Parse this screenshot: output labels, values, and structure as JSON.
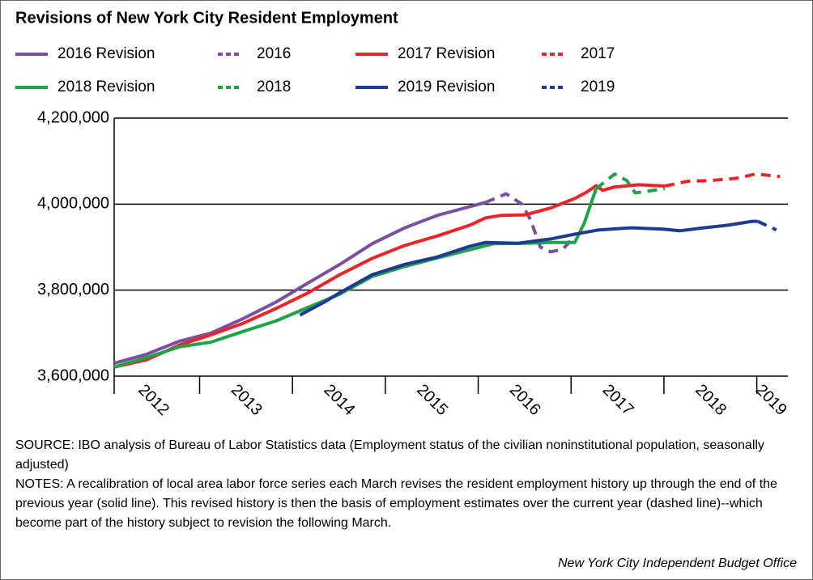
{
  "chart_data": {
    "type": "line",
    "title": "Revisions of New York City Resident Employment",
    "xlim": [
      2012.08,
      2019.3
    ],
    "ylim": [
      3600000,
      4200000
    ],
    "yticks": [
      {
        "value": 3600000,
        "label": "3,600,000"
      },
      {
        "value": 3800000,
        "label": "3,800,000"
      },
      {
        "value": 4000000,
        "label": "4,000,000"
      },
      {
        "value": 4200000,
        "label": "4,200,000"
      }
    ],
    "xticks": [
      {
        "value": 2012.5,
        "label": "2012"
      },
      {
        "value": 2013.5,
        "label": "2013"
      },
      {
        "value": 2014.5,
        "label": "2014"
      },
      {
        "value": 2015.5,
        "label": "2015"
      },
      {
        "value": 2016.5,
        "label": "2016"
      },
      {
        "value": 2017.5,
        "label": "2017"
      },
      {
        "value": 2018.5,
        "label": "2018"
      },
      {
        "value": 2019.15,
        "label": "2019"
      }
    ],
    "grid": true,
    "series": [
      {
        "name": "2016 Revision",
        "color": "#7a4f9f",
        "dashed": false,
        "x": [
          2012.08,
          2012.43,
          2012.78,
          2013.12,
          2013.47,
          2013.82,
          2014.17,
          2014.51,
          2014.86,
          2015.21,
          2015.56,
          2015.91,
          2016.08
        ],
        "values": [
          3630000,
          3651000,
          3681000,
          3700000,
          3734000,
          3772000,
          3817000,
          3860000,
          3908000,
          3945000,
          3974000,
          3994000,
          4004000
        ]
      },
      {
        "name": "2016",
        "color": "#7a4f9f",
        "dashed": true,
        "x": [
          2016.08,
          2016.3,
          2016.47,
          2016.56,
          2016.67,
          2016.78,
          2016.91,
          2017.04
        ],
        "values": [
          4004000,
          4024000,
          4000000,
          3965000,
          3900000,
          3889000,
          3895000,
          3925000
        ]
      },
      {
        "name": "2017 Revision",
        "color": "#e8262a",
        "dashed": false,
        "x": [
          2012.08,
          2012.43,
          2012.78,
          2013.12,
          2013.47,
          2013.82,
          2014.17,
          2014.51,
          2014.86,
          2015.21,
          2015.56,
          2015.91,
          2016.08,
          2016.25,
          2016.51,
          2016.78,
          2017.04,
          2017.17,
          2017.27,
          2017.34,
          2017.47,
          2017.73,
          2018.01
        ],
        "values": [
          3621000,
          3638000,
          3672000,
          3696000,
          3723000,
          3757000,
          3794000,
          3836000,
          3874000,
          3904000,
          3926000,
          3951000,
          3968000,
          3974000,
          3975000,
          3991000,
          4013000,
          4028000,
          4043000,
          4032000,
          4040000,
          4045000,
          4042000
        ]
      },
      {
        "name": "2017",
        "color": "#e8262a",
        "dashed": true,
        "x": [
          2018.01,
          2018.25,
          2018.51,
          2018.78,
          2018.99,
          2019.25
        ],
        "values": [
          4042000,
          4053000,
          4055000,
          4060000,
          4070000,
          4064000
        ]
      },
      {
        "name": "2018 Revision",
        "color": "#1fa24a",
        "dashed": false,
        "x": [
          2012.08,
          2012.43,
          2012.78,
          2013.12,
          2013.47,
          2013.82,
          2014.17,
          2014.51,
          2014.86,
          2015.21,
          2015.56,
          2015.91,
          2016.17,
          2016.51,
          2016.78,
          2017.04,
          2017.14,
          2017.27
        ],
        "values": [
          3621000,
          3643000,
          3668000,
          3679000,
          3704000,
          3728000,
          3760000,
          3791000,
          3832000,
          3855000,
          3875000,
          3894000,
          3908000,
          3909000,
          3911000,
          3911000,
          3955000,
          4036000
        ]
      },
      {
        "name": "2018",
        "color": "#1fa24a",
        "dashed": true,
        "x": [
          2017.27,
          2017.47,
          2017.6,
          2017.69,
          2017.82,
          2018.01
        ],
        "values": [
          4036000,
          4070000,
          4055000,
          4026000,
          4030000,
          4036000
        ]
      },
      {
        "name": "2019 Revision",
        "color": "#1f3a93",
        "dashed": false,
        "x": [
          2014.08,
          2014.34,
          2014.51,
          2014.86,
          2015.21,
          2015.56,
          2015.91,
          2016.08,
          2016.43,
          2016.78,
          2017.04,
          2017.3,
          2017.65,
          2017.99,
          2018.17,
          2018.43,
          2018.69,
          2018.95,
          2019.01
        ],
        "values": [
          3742000,
          3772000,
          3794000,
          3836000,
          3860000,
          3877000,
          3902000,
          3911000,
          3909000,
          3919000,
          3930000,
          3940000,
          3945000,
          3942000,
          3938000,
          3945000,
          3951000,
          3960000,
          3960000
        ]
      },
      {
        "name": "2019",
        "color": "#1f3a93",
        "dashed": true,
        "x": [
          2019.01,
          2019.21
        ],
        "values": [
          3960000,
          3940000
        ]
      }
    ],
    "source": "SOURCE: IBO analysis of Bureau of Labor Statistics data (Employment status of the civilian noninstitutional population, seasonally adjusted)",
    "notes": "NOTES: A recalibration of local area labor force series each March revises the resident employment history up through the end of the previous year (solid line). This revised history is then the basis of employment estimates over the current year (dashed line)--which become part of the history subject to revision the following March.",
    "credit": "New York City Independent Budget Office"
  }
}
